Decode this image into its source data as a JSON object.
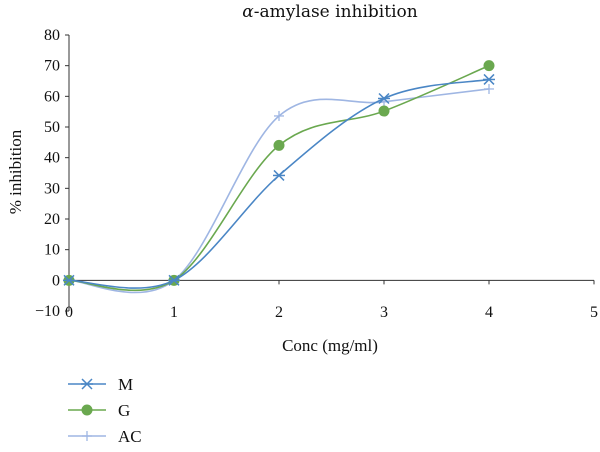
{
  "chart_data": {
    "type": "line",
    "title_prefix": "α",
    "title_rest": "-amylase inhibition",
    "xlabel": "Conc (mg/ml)",
    "ylabel": "% inhibition",
    "xlim": [
      0,
      5
    ],
    "ylim": [
      -10,
      80
    ],
    "x_ticks": [
      0,
      1,
      2,
      3,
      4,
      5
    ],
    "y_ticks": [
      -10,
      0,
      10,
      20,
      30,
      40,
      50,
      60,
      70,
      80
    ],
    "grid": false,
    "legend_position": "bottom-left",
    "smooth": true,
    "x": [
      0,
      1,
      2,
      3,
      4
    ],
    "series": [
      {
        "name": "M",
        "marker": "asterisk",
        "color": "#4a86c5",
        "values": [
          0,
          0,
          34.2,
          59.3,
          65.5
        ]
      },
      {
        "name": "G",
        "marker": "circle",
        "color": "#6aa84f",
        "values": [
          0,
          0,
          44.0,
          55.2,
          70.0
        ]
      },
      {
        "name": "AC",
        "marker": "plus",
        "color": "#9fb6e3",
        "values": [
          0,
          0,
          53.6,
          58.2,
          62.4
        ]
      }
    ]
  }
}
